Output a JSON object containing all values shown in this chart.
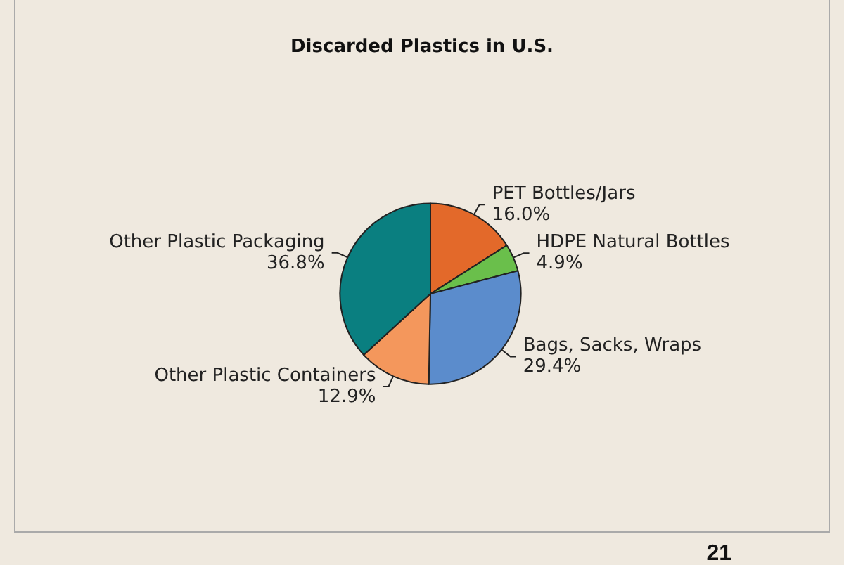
{
  "chart_data": {
    "type": "pie",
    "title": "Discarded Plastics in U.S.",
    "categories": [
      "PET Bottles/Jars",
      "HDPE Natural Bottles",
      "Bags, Sacks, Wraps",
      "Other Plastic Containers",
      "Other Plastic Packaging"
    ],
    "values": [
      16.0,
      4.9,
      29.4,
      12.9,
      36.8
    ],
    "colors": [
      "#e3692a",
      "#6abf4b",
      "#5b8ccc",
      "#f4975c",
      "#0a7f80"
    ],
    "value_labels": [
      "16.0%",
      "4.9%",
      "29.4%",
      "12.9%",
      "36.8%"
    ],
    "annotations": [
      "21"
    ],
    "legend": false
  }
}
